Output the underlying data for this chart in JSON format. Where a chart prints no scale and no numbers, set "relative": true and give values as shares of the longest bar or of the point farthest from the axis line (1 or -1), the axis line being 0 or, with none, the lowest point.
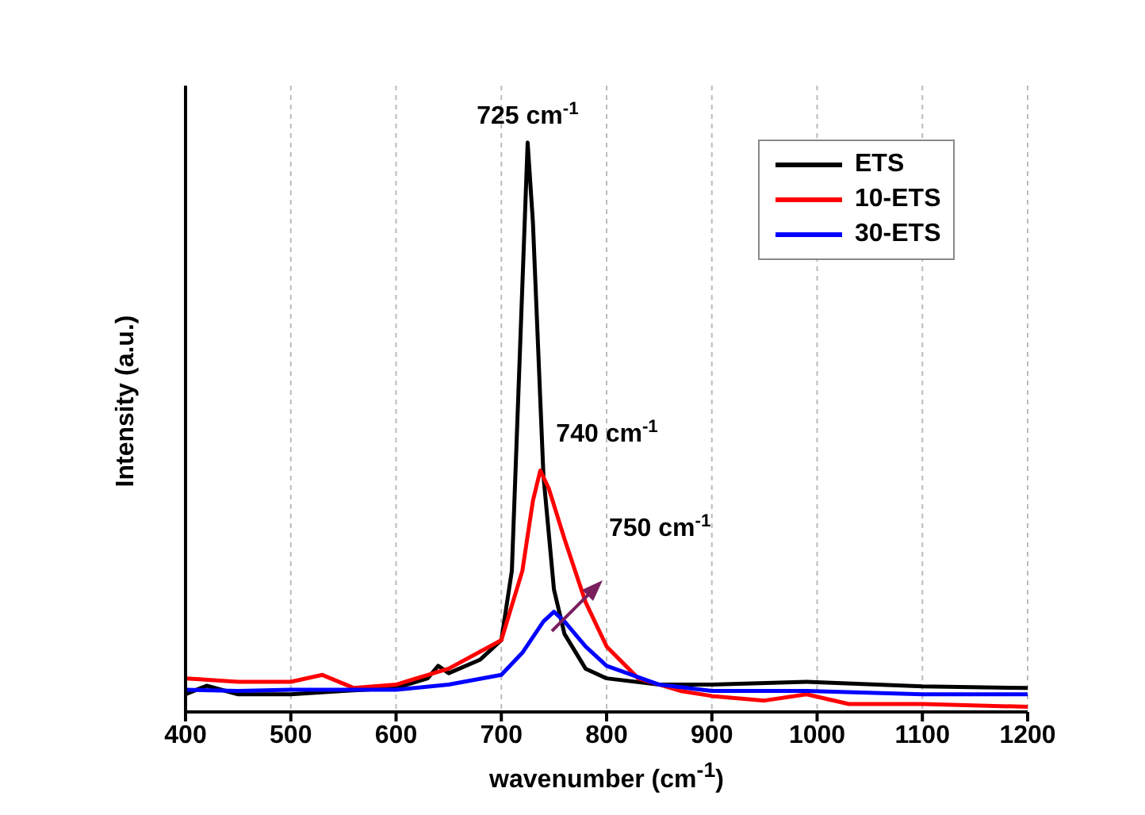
{
  "chart_data": {
    "type": "line",
    "relative": true,
    "xlabel": "wavenumber (cm$^{-1}$)",
    "ylabel": "Intensity (a.u.)",
    "xlim": [
      400,
      1200
    ],
    "xticks": [
      400,
      500,
      600,
      700,
      800,
      900,
      1000,
      1100,
      1200
    ],
    "grid": "x",
    "legend": "top right",
    "tick_labels": "x",
    "marker": "none",
    "line_style": "solid",
    "series": [
      {
        "name": "ETS",
        "color": "#000000",
        "x": [
          400,
          420,
          450,
          500,
          550,
          600,
          630,
          640,
          650,
          680,
          700,
          710,
          720,
          725,
          730,
          740,
          750,
          760,
          780,
          800,
          850,
          900,
          990,
          1100,
          1200
        ],
        "values": [
          0.031,
          0.046,
          0.031,
          0.031,
          0.037,
          0.042,
          0.059,
          0.081,
          0.068,
          0.092,
          0.126,
          0.248,
          0.75,
          1.0,
          0.86,
          0.415,
          0.215,
          0.137,
          0.076,
          0.059,
          0.048,
          0.048,
          0.053,
          0.045,
          0.042
        ]
      },
      {
        "name": "10-ETS",
        "color": "#ff0000",
        "x": [
          400,
          450,
          500,
          530,
          560,
          600,
          650,
          700,
          720,
          730,
          737,
          745,
          760,
          780,
          800,
          830,
          870,
          900,
          950,
          990,
          1030,
          1100,
          1200
        ],
        "values": [
          0.059,
          0.053,
          0.053,
          0.065,
          0.042,
          0.048,
          0.076,
          0.126,
          0.248,
          0.371,
          0.424,
          0.393,
          0.304,
          0.193,
          0.115,
          0.059,
          0.037,
          0.028,
          0.02,
          0.031,
          0.014,
          0.014,
          0.009
        ]
      },
      {
        "name": "30-ETS",
        "color": "#0000ff",
        "x": [
          400,
          450,
          500,
          600,
          650,
          700,
          720,
          740,
          750,
          760,
          780,
          800,
          850,
          900,
          990,
          1100,
          1200
        ],
        "values": [
          0.039,
          0.037,
          0.039,
          0.039,
          0.048,
          0.065,
          0.104,
          0.159,
          0.176,
          0.159,
          0.115,
          0.081,
          0.048,
          0.037,
          0.037,
          0.031,
          0.031
        ]
      }
    ],
    "annotations": [
      {
        "text": "725 cm$^{-1}$",
        "x": 725,
        "y": 1.0
      },
      {
        "text": "740 cm$^{-1}$",
        "x": 740,
        "y": 0.424
      },
      "750 cm$^{-1}$"
    ]
  }
}
